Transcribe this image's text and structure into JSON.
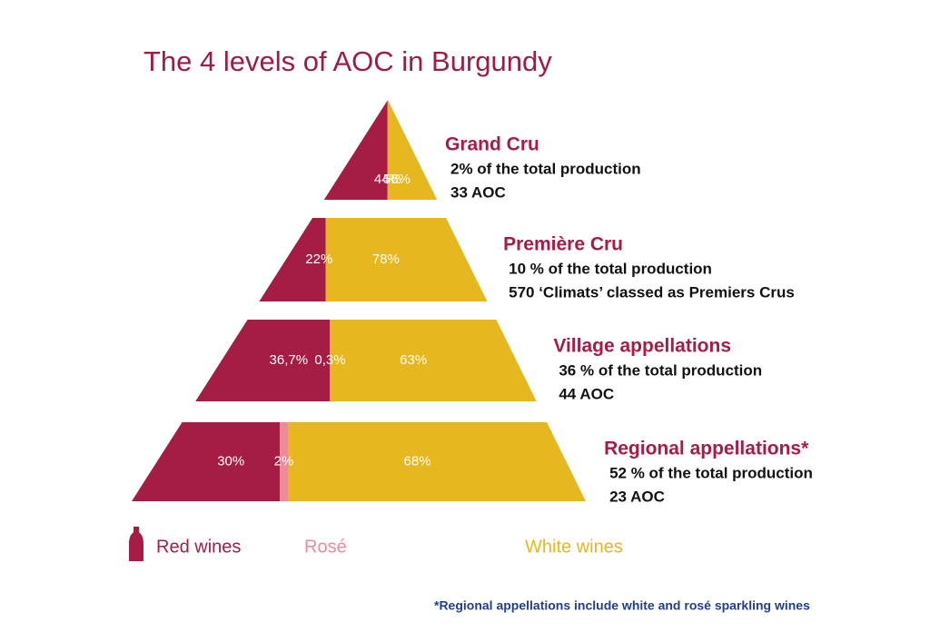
{
  "chart_data": {
    "type": "pyramid",
    "title": "The 4 levels of AOC in Burgundy",
    "categories": [
      "Grand Cru",
      "Première Cru",
      "Village appellations",
      "Regional appellations*"
    ],
    "details": [
      [
        "2% of the total production",
        "33 AOC"
      ],
      [
        "10 % of the total production",
        "570 ‘Climats’ classed as Premiers Crus"
      ],
      [
        "36 % of the total production",
        "44 AOC"
      ],
      [
        "52 % of the total production",
        "23 AOC"
      ]
    ],
    "series": [
      {
        "name": "Red wines",
        "color": "#a51c45",
        "values": [
          56,
          22,
          36.7,
          30
        ],
        "value_labels": [
          "56%",
          "22%",
          "36,7%",
          "30%"
        ]
      },
      {
        "name": "Rosé",
        "color": "#f08a98",
        "values": [
          null,
          null,
          0.3,
          2
        ],
        "value_labels": [
          null,
          null,
          "0,3%",
          "2%"
        ]
      },
      {
        "name": "White wines",
        "color": "#e6b71e",
        "values": [
          44,
          78,
          63,
          68
        ],
        "value_labels": [
          "44%",
          "78%",
          "63%",
          "68%"
        ]
      }
    ],
    "footnote": "*Regional appellations include white and rosé sparkling wines"
  }
}
